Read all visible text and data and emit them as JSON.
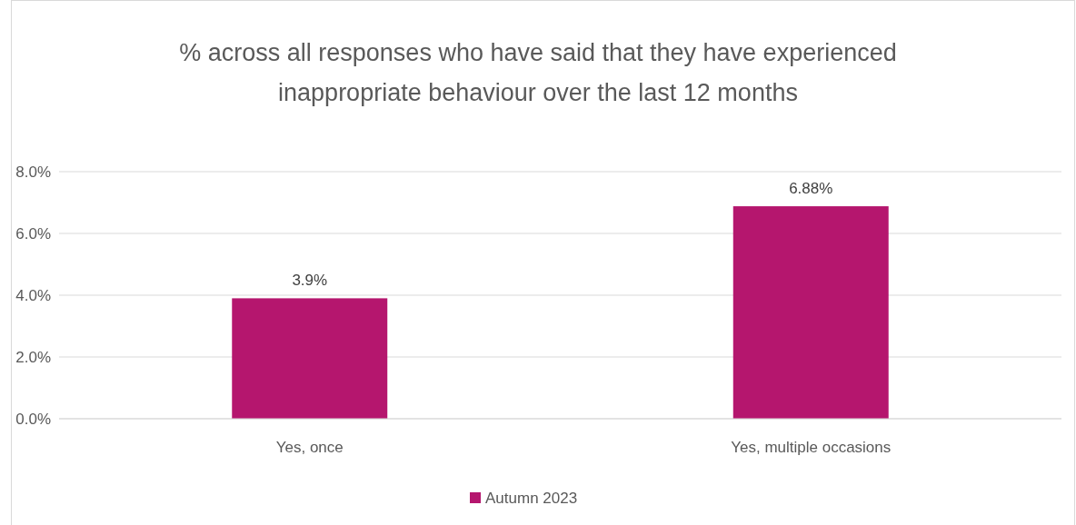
{
  "chart_data": {
    "type": "bar",
    "title": "% across all responses who have said that they have experienced inappropriate behaviour over the last 12 months",
    "categories": [
      "Yes, once",
      "Yes, multiple occasions"
    ],
    "series": [
      {
        "name": "Autumn 2023",
        "color": "#b5166e",
        "values": [
          3.9,
          6.88
        ],
        "value_labels": [
          "3.9%",
          "6.88%"
        ]
      }
    ],
    "ylim": [
      0,
      8
    ],
    "yticks": [
      {
        "value": 0,
        "label": "0.0%"
      },
      {
        "value": 2,
        "label": "2.0%"
      },
      {
        "value": 4,
        "label": "4.0%"
      },
      {
        "value": 6,
        "label": "6.0%"
      },
      {
        "value": 8,
        "label": "8.0%"
      }
    ],
    "grid": "y",
    "legend": "bottom"
  }
}
